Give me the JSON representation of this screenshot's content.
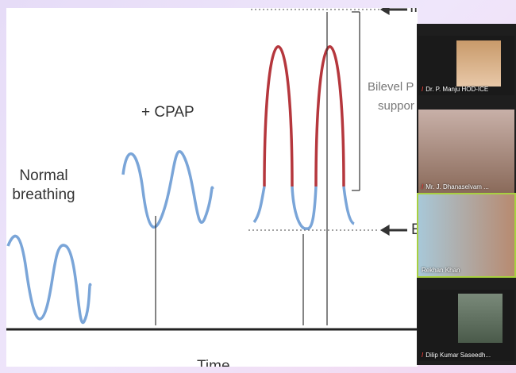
{
  "slide": {
    "labels": [
      "Normal breathing",
      "+ CPAP",
      "Bilevel P",
      "suppor",
      "IPA",
      "E",
      "Time"
    ]
  },
  "participants": [
    "Dr. P. Manju HOD-ICE",
    "Mr. J. Dhanaselvam ...",
    "Rekhan Khan",
    "Dilip Kumar Saseedh..."
  ]
}
